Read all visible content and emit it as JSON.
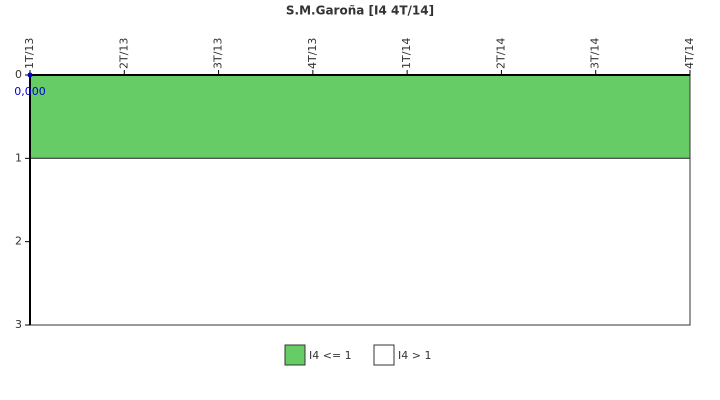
{
  "chart_data": {
    "type": "line",
    "title": "S.M.Garoña [I4 4T/14]",
    "categories": [
      "1T/13",
      "2T/13",
      "3T/13",
      "4T/13",
      "1T/14",
      "2T/14",
      "3T/14",
      "4T/14"
    ],
    "series": [
      {
        "color": "#0000cc",
        "values": [
          0,
          null,
          null,
          null,
          null,
          null,
          null,
          null
        ],
        "value_labels": [
          "0,000",
          null,
          null,
          null,
          null,
          null,
          null,
          null
        ]
      }
    ],
    "bands": [
      {
        "name": "I4 <= 1",
        "color": "#66cc66",
        "range": [
          0,
          1
        ]
      },
      {
        "name": "I4 > 1",
        "color": "#ffffff",
        "range": [
          1,
          3
        ]
      }
    ],
    "ylim": [
      0,
      3
    ],
    "yticks": [
      0,
      1,
      2,
      3
    ],
    "y_inverted": true
  }
}
